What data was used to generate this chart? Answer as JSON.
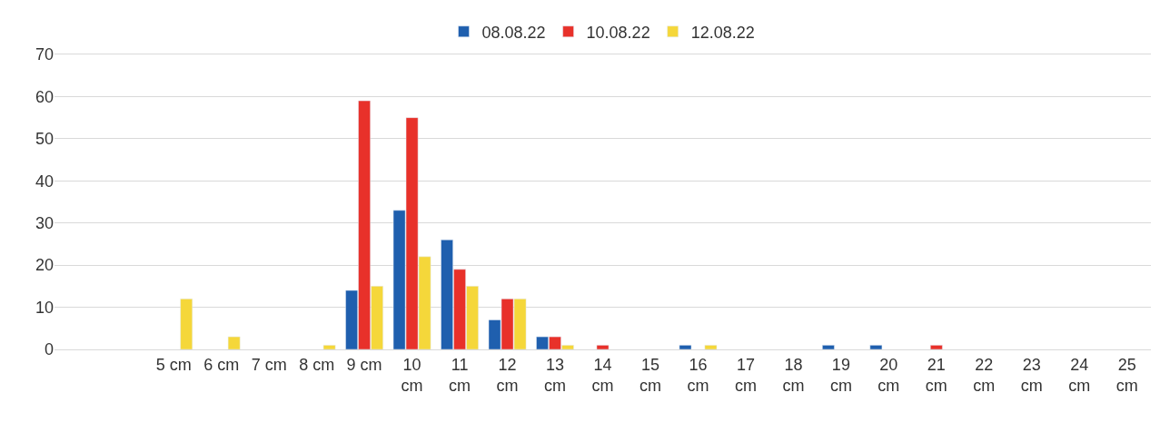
{
  "chart_data": {
    "type": "bar",
    "categories": [
      null,
      null,
      "5 cm",
      "6 cm",
      "7 cm",
      "8 cm",
      "9 cm",
      "10 cm",
      "11 cm",
      "12 cm",
      "13 cm",
      "14 cm",
      "15 cm",
      "16 cm",
      "17 cm",
      "18 cm",
      "19 cm",
      "20 cm",
      "21 cm",
      "22 cm",
      "23 cm",
      "24 cm",
      "25 cm"
    ],
    "series": [
      {
        "name": "08.08.22",
        "color": "#1f5fae",
        "values": [
          null,
          null,
          null,
          null,
          null,
          null,
          14,
          33,
          26,
          7,
          3,
          null,
          null,
          1,
          null,
          null,
          1,
          1,
          null,
          null,
          null,
          null,
          null
        ]
      },
      {
        "name": "10.08.22",
        "color": "#e8312a",
        "values": [
          null,
          null,
          null,
          null,
          null,
          null,
          59,
          55,
          19,
          12,
          3,
          1,
          null,
          null,
          null,
          null,
          null,
          null,
          1,
          null,
          null,
          null,
          null
        ]
      },
      {
        "name": "12.08.22",
        "color": "#f5d73a",
        "values": [
          null,
          null,
          12,
          3,
          null,
          1,
          15,
          22,
          15,
          12,
          1,
          null,
          null,
          1,
          null,
          null,
          null,
          null,
          null,
          null,
          null,
          null,
          null
        ]
      }
    ],
    "ylim": [
      0,
      70
    ],
    "yticks": [
      0,
      10,
      20,
      30,
      40,
      50,
      60,
      70
    ],
    "grid": "y",
    "legend": "top"
  }
}
